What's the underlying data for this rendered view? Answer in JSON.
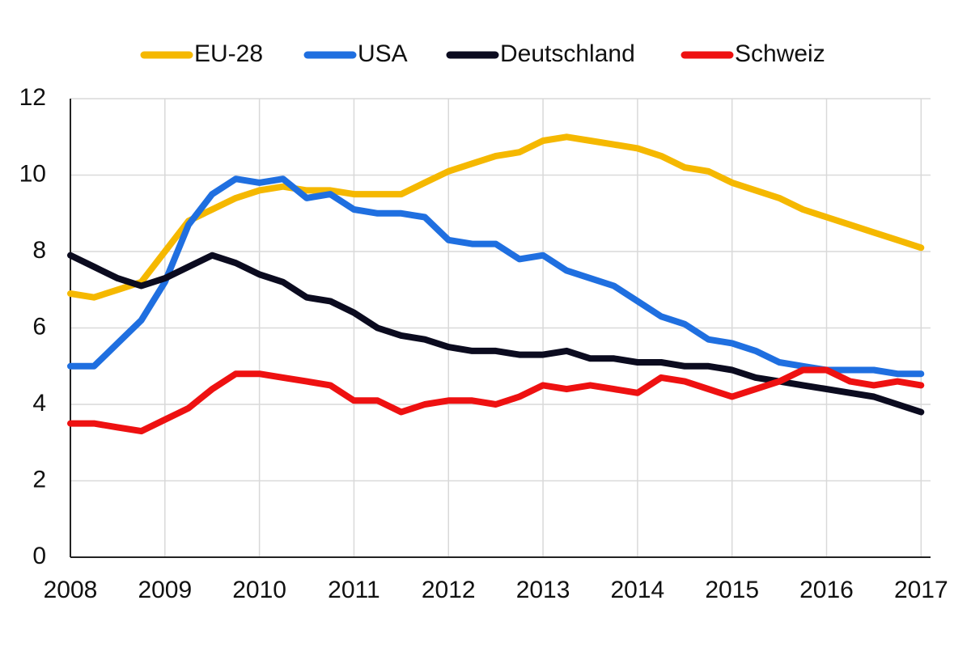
{
  "chart_data": {
    "type": "line",
    "x": [
      2008,
      2008.25,
      2008.5,
      2008.75,
      2009,
      2009.25,
      2009.5,
      2009.75,
      2010,
      2010.25,
      2010.5,
      2010.75,
      2011,
      2011.25,
      2011.5,
      2011.75,
      2012,
      2012.25,
      2012.5,
      2012.75,
      2013,
      2013.25,
      2013.5,
      2013.75,
      2014,
      2014.25,
      2014.5,
      2014.75,
      2015,
      2015.25,
      2015.5,
      2015.75,
      2016,
      2016.25,
      2016.5,
      2016.75,
      2017
    ],
    "series": [
      {
        "name": "EU-28",
        "color": "#f5b800",
        "values": [
          6.9,
          6.8,
          7.0,
          7.2,
          8.0,
          8.8,
          9.1,
          9.4,
          9.6,
          9.7,
          9.6,
          9.6,
          9.5,
          9.5,
          9.5,
          9.8,
          10.1,
          10.3,
          10.5,
          10.6,
          10.9,
          11.0,
          10.9,
          10.8,
          10.7,
          10.5,
          10.2,
          10.1,
          9.8,
          9.6,
          9.4,
          9.1,
          8.9,
          8.7,
          8.5,
          8.3,
          8.1
        ]
      },
      {
        "name": "USA",
        "color": "#1f6fe0",
        "values": [
          5.0,
          5.0,
          5.6,
          6.2,
          7.2,
          8.7,
          9.5,
          9.9,
          9.8,
          9.9,
          9.4,
          9.5,
          9.1,
          9.0,
          9.0,
          8.9,
          8.3,
          8.2,
          8.2,
          7.8,
          7.9,
          7.5,
          7.3,
          7.1,
          6.7,
          6.3,
          6.1,
          5.7,
          5.6,
          5.4,
          5.1,
          5.0,
          4.9,
          4.9,
          4.9,
          4.8,
          4.8
        ]
      },
      {
        "name": "Deutschland",
        "color": "#0b0b1f",
        "values": [
          7.9,
          7.6,
          7.3,
          7.1,
          7.3,
          7.6,
          7.9,
          7.7,
          7.4,
          7.2,
          6.8,
          6.7,
          6.4,
          6.0,
          5.8,
          5.7,
          5.5,
          5.4,
          5.4,
          5.3,
          5.3,
          5.4,
          5.2,
          5.2,
          5.1,
          5.1,
          5.0,
          5.0,
          4.9,
          4.7,
          4.6,
          4.5,
          4.4,
          4.3,
          4.2,
          4.0,
          3.8
        ]
      },
      {
        "name": "Schweiz",
        "color": "#ee1111",
        "values": [
          3.5,
          3.5,
          3.4,
          3.3,
          3.6,
          3.9,
          4.4,
          4.8,
          4.8,
          4.7,
          4.6,
          4.5,
          4.1,
          4.1,
          3.8,
          4.0,
          4.1,
          4.1,
          4.0,
          4.2,
          4.5,
          4.4,
          4.5,
          4.4,
          4.3,
          4.7,
          4.6,
          4.4,
          4.2,
          4.4,
          4.6,
          4.9,
          4.9,
          4.6,
          4.5,
          4.6,
          4.5
        ]
      }
    ],
    "xlim": [
      2008,
      2017.1
    ],
    "xticks": [
      2008,
      2009,
      2010,
      2011,
      2012,
      2013,
      2014,
      2015,
      2016,
      2017
    ],
    "ylim": [
      0,
      12
    ],
    "yticks": [
      0,
      2,
      4,
      6,
      8,
      10,
      12
    ],
    "grid": true,
    "legend": "top"
  }
}
